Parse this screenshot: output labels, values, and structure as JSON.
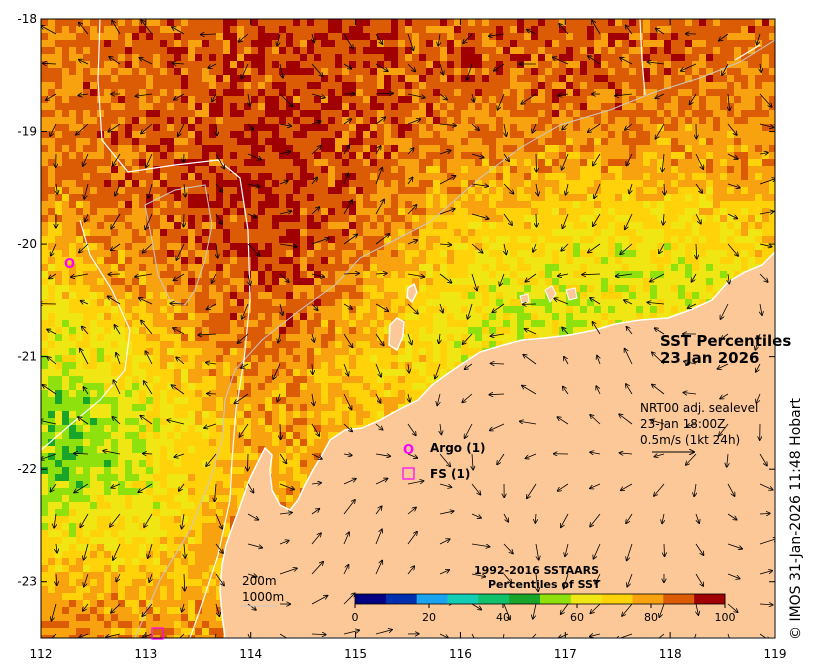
{
  "title": {
    "line1": "SST Percentiles",
    "line2": "23 Jan 2026"
  },
  "velocity": {
    "line1": "NRT00 adj. sealevel",
    "line2": "23-Jan 18:00Z",
    "line3": "0.5m/s (1kt 24h)"
  },
  "markers": [
    {
      "symbol": "O",
      "label": "Argo (1)",
      "color": "#ff00ff"
    },
    {
      "symbol": "square",
      "label": "FS (1)",
      "color": "#ff00ff"
    }
  ],
  "contours": {
    "label1": "200m",
    "label2": "1000m"
  },
  "colorbar": {
    "title1": "1992-2016 SSTAARS",
    "title2": "Percentiles of SST",
    "colors": [
      "#000080",
      "#0030b0",
      "#1aa3ee",
      "#12cdb4",
      "#10c06a",
      "#18a52a",
      "#8ee10c",
      "#f0e614",
      "#ffd20a",
      "#f9a20f",
      "#dc5c05",
      "#a00000"
    ],
    "ticks": [
      "0",
      "20",
      "40",
      "60",
      "80",
      "100"
    ]
  },
  "axes": {
    "lon_ticks": [
      "112",
      "113",
      "114",
      "115",
      "116",
      "117",
      "118",
      "119"
    ],
    "lat_ticks": [
      "-18",
      "-19",
      "-20",
      "-21",
      "-22",
      "-23"
    ],
    "lon_range": [
      112,
      119
    ],
    "lat_range": [
      -23.5,
      -18
    ]
  },
  "copyright": "© IMOS 31-Jan-2026 11:48 Hobart"
}
